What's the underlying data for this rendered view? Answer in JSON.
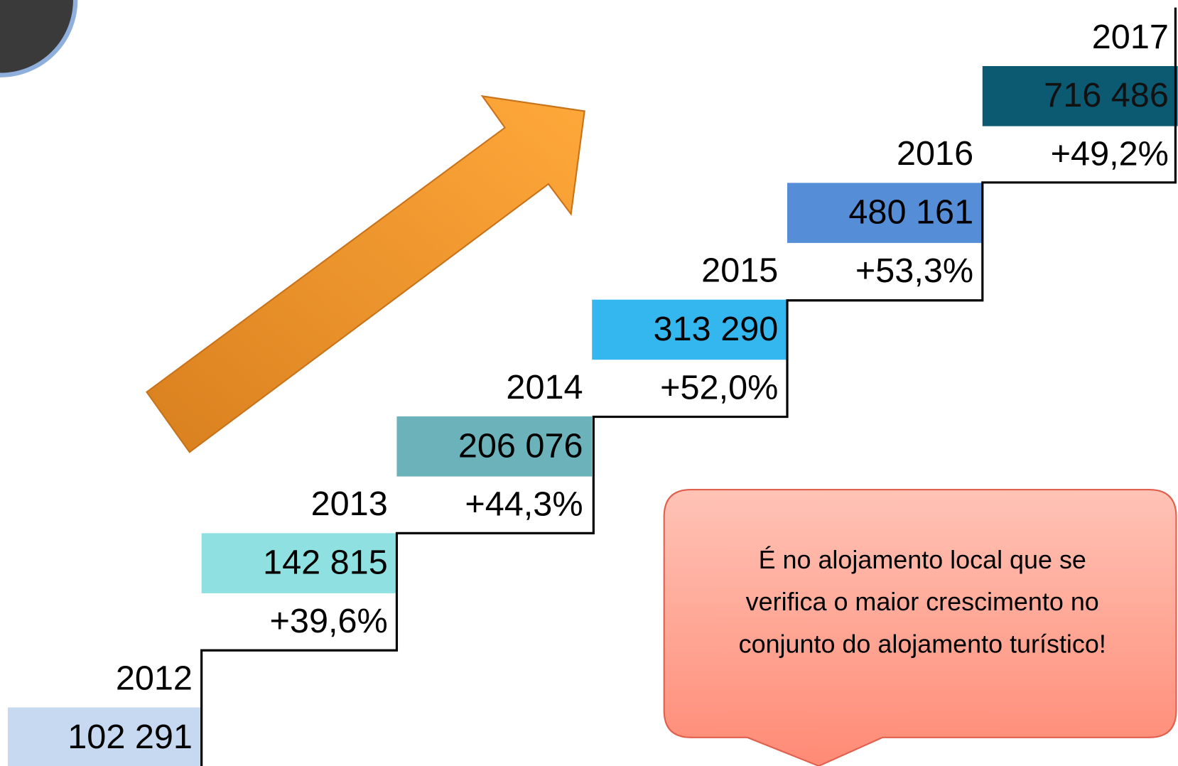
{
  "steps": [
    {
      "year": "2012",
      "value": "102 291",
      "color": "#c6d9f1"
    },
    {
      "year": "2013",
      "value": "142 815",
      "change": "+39,6%",
      "color": "#8fe0e0"
    },
    {
      "year": "2014",
      "value": "206 076",
      "change": "+44,3%",
      "color": "#6cb2bb"
    },
    {
      "year": "2015",
      "value": "313 290",
      "change": "+52,0%",
      "color": "#34b6ee"
    },
    {
      "year": "2016",
      "value": "480 161",
      "change": "+53,3%",
      "color": "#558ed6"
    },
    {
      "year": "2017",
      "value": "716 486",
      "change": "+49,2%",
      "color": "#0b5a72"
    }
  ],
  "callout": {
    "lines": [
      "É no alojamento local que se",
      "verifica o maior crescimento no",
      "conjunto do alojamento turístico!"
    ]
  }
}
